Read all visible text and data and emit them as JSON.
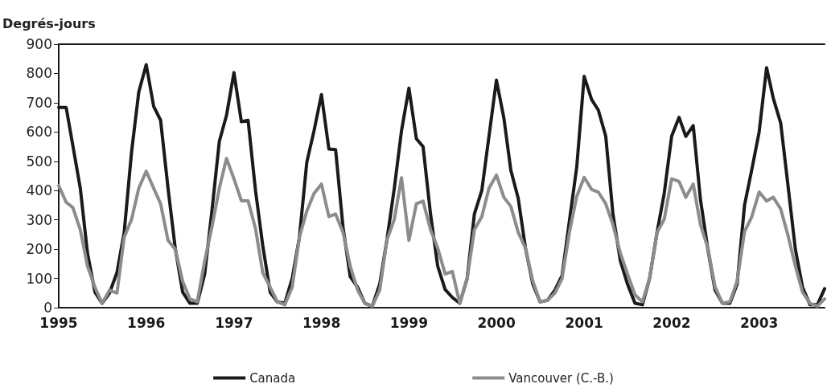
{
  "chart_data": {
    "type": "line",
    "ylabel": "Degrés-jours",
    "x": [
      "1995-01",
      "1995-02",
      "1995-03",
      "1995-04",
      "1995-05",
      "1995-06",
      "1995-07",
      "1995-08",
      "1995-09",
      "1995-10",
      "1995-11",
      "1995-12",
      "1996-01",
      "1996-02",
      "1996-03",
      "1996-04",
      "1996-05",
      "1996-06",
      "1996-07",
      "1996-08",
      "1996-09",
      "1996-10",
      "1996-11",
      "1996-12",
      "1997-01",
      "1997-02",
      "1997-03",
      "1997-04",
      "1997-05",
      "1997-06",
      "1997-07",
      "1997-08",
      "1997-09",
      "1997-10",
      "1997-11",
      "1997-12",
      "1998-01",
      "1998-02",
      "1998-03",
      "1998-04",
      "1998-05",
      "1998-06",
      "1998-07",
      "1998-08",
      "1998-09",
      "1998-10",
      "1998-11",
      "1998-12",
      "1999-01",
      "1999-02",
      "1999-03",
      "1999-04",
      "1999-05",
      "1999-06",
      "1999-07",
      "1999-08",
      "1999-09",
      "1999-10",
      "1999-11",
      "1999-12",
      "2000-01",
      "2000-02",
      "2000-03",
      "2000-04",
      "2000-05",
      "2000-06",
      "2000-07",
      "2000-08",
      "2000-09",
      "2000-10",
      "2000-11",
      "2000-12",
      "2001-01",
      "2001-02",
      "2001-03",
      "2001-04",
      "2001-05",
      "2001-06",
      "2001-07",
      "2001-08",
      "2001-09",
      "2001-10",
      "2001-11",
      "2001-12",
      "2002-01",
      "2002-02",
      "2002-03",
      "2002-04",
      "2002-05",
      "2002-06",
      "2002-07",
      "2002-08",
      "2002-09",
      "2002-10",
      "2002-11",
      "2002-12",
      "2003-01",
      "2003-02",
      "2003-03",
      "2003-04",
      "2003-05",
      "2003-06",
      "2003-07",
      "2003-08",
      "2003-09",
      "2003-10"
    ],
    "xlim": [
      "1995-01",
      "2003-10"
    ],
    "xticks": [
      "1995",
      "1996",
      "1997",
      "1998",
      "1999",
      "2000",
      "2001",
      "2002",
      "2003"
    ],
    "ylim": [
      0,
      900
    ],
    "yticks": [
      0,
      100,
      200,
      300,
      400,
      500,
      600,
      700,
      800,
      900
    ],
    "grid": false,
    "legend": "bottom",
    "marker": "none",
    "line_style": "solid",
    "series": [
      {
        "name": "Canada",
        "color": "#1a1a1a",
        "values": [
          684,
          684,
          553,
          408,
          186,
          53,
          15,
          50,
          120,
          257,
          533,
          737,
          830,
          688,
          640,
          408,
          204,
          53,
          15,
          15,
          115,
          330,
          568,
          657,
          803,
          635,
          640,
          400,
          213,
          53,
          20,
          15,
          100,
          240,
          497,
          604,
          728,
          542,
          540,
          275,
          106,
          70,
          15,
          5,
          80,
          230,
          408,
          604,
          750,
          577,
          550,
          320,
          142,
          62,
          35,
          15,
          100,
          320,
          400,
          586,
          777,
          648,
          470,
          373,
          204,
          80,
          20,
          25,
          60,
          110,
          300,
          480,
          790,
          711,
          675,
          586,
          320,
          160,
          80,
          15,
          10,
          100,
          257,
          390,
          586,
          650,
          585,
          622,
          370,
          200,
          60,
          15,
          15,
          80,
          350,
          470,
          600,
          820,
          715,
          630,
          420,
          200,
          70,
          10,
          10,
          65
        ]
      },
      {
        "name": "Vancouver (C.-B.)",
        "color": "#8c8c8c",
        "values": [
          417,
          360,
          342,
          266,
          142,
          70,
          15,
          60,
          50,
          240,
          302,
          408,
          466,
          408,
          355,
          230,
          200,
          90,
          30,
          20,
          160,
          275,
          408,
          510,
          440,
          365,
          365,
          270,
          120,
          70,
          20,
          10,
          70,
          240,
          330,
          390,
          422,
          311,
          320,
          257,
          142,
          60,
          15,
          5,
          60,
          230,
          302,
          444,
          230,
          355,
          364,
          266,
          204,
          115,
          124,
          15,
          100,
          266,
          311,
          408,
          453,
          377,
          346,
          257,
          204,
          90,
          20,
          25,
          50,
          100,
          260,
          380,
          445,
          404,
          395,
          355,
          284,
          186,
          115,
          44,
          20,
          100,
          257,
          302,
          440,
          431,
          377,
          422,
          284,
          204,
          71,
          15,
          20,
          90,
          260,
          310,
          395,
          364,
          377,
          337,
          248,
          142,
          53,
          15,
          5,
          30
        ]
      }
    ]
  }
}
